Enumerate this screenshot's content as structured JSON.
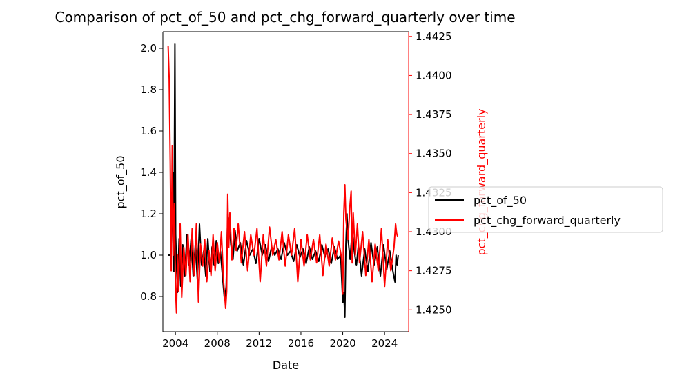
{
  "chart_data": {
    "type": "line",
    "title": "Comparison of pct_of_50 and pct_chg_forward_quarterly over time",
    "xlabel": "Date",
    "ylabel_left": "pct_of_50",
    "ylabel_right": "pct_chg_forward_quarterly",
    "x_ticks": [
      "2004",
      "2008",
      "2012",
      "2016",
      "2020",
      "2024"
    ],
    "x_tick_values": [
      2004,
      2008,
      2012,
      2016,
      2020,
      2024
    ],
    "xlim": [
      2002.8,
      2026.3
    ],
    "y_left_ticks": [
      "0.8",
      "1.0",
      "1.2",
      "1.4",
      "1.6",
      "1.8",
      "2.0"
    ],
    "y_left_tick_values": [
      0.8,
      1.0,
      1.2,
      1.4,
      1.6,
      1.8,
      2.0
    ],
    "ylim_left": [
      0.63,
      2.08
    ],
    "y_right_ticks": [
      "1.4250",
      "1.4275",
      "1.4300",
      "1.4325",
      "1.4350",
      "1.4375",
      "1.4400",
      "1.4425"
    ],
    "y_right_tick_values": [
      1.425,
      1.4275,
      1.43,
      1.4325,
      1.435,
      1.4375,
      1.44,
      1.4425
    ],
    "ylim_right": [
      1.4236,
      1.4428
    ],
    "grid": false,
    "legend_placement": "right-outside",
    "series": [
      {
        "name": "pct_of_50",
        "axis": "left",
        "color": "#000000",
        "x": [
          2003.3,
          2003.6,
          2003.8,
          2003.85,
          2003.95,
          2004.02,
          2004.1,
          2004.2,
          2004.35,
          2004.5,
          2004.7,
          2004.9,
          2005.1,
          2005.3,
          2005.5,
          2005.7,
          2005.9,
          2006.1,
          2006.3,
          2006.5,
          2006.7,
          2006.9,
          2007.1,
          2007.3,
          2007.5,
          2007.7,
          2007.9,
          2008.1,
          2008.3,
          2008.5,
          2008.7,
          2008.85,
          2009.0,
          2009.15,
          2009.3,
          2009.5,
          2009.7,
          2009.9,
          2010.2,
          2010.5,
          2010.8,
          2011.1,
          2011.4,
          2011.7,
          2012.0,
          2012.3,
          2012.6,
          2012.9,
          2013.2,
          2013.5,
          2013.8,
          2014.1,
          2014.4,
          2014.7,
          2015.0,
          2015.3,
          2015.6,
          2015.9,
          2016.2,
          2016.5,
          2016.8,
          2017.1,
          2017.4,
          2017.7,
          2018.0,
          2018.3,
          2018.6,
          2018.9,
          2019.2,
          2019.5,
          2019.8,
          2020.0,
          2020.1,
          2020.2,
          2020.3,
          2020.4,
          2020.5,
          2020.7,
          2020.9,
          2021.1,
          2021.3,
          2021.5,
          2021.8,
          2022.1,
          2022.4,
          2022.7,
          2023.0,
          2023.3,
          2023.6,
          2023.9,
          2024.2,
          2024.5,
          2024.8,
          2025.0,
          2025.1,
          2025.2,
          2025.3
        ],
        "values": [
          1.0,
          1.0,
          1.4,
          0.92,
          2.02,
          1.1,
          0.95,
          0.82,
          1.08,
          0.85,
          1.05,
          0.9,
          1.1,
          0.95,
          1.08,
          0.9,
          1.05,
          0.88,
          1.15,
          0.95,
          1.02,
          0.9,
          1.08,
          0.92,
          1.04,
          0.95,
          1.07,
          0.96,
          1.02,
          0.9,
          0.78,
          0.85,
          1.2,
          1.15,
          1.05,
          0.98,
          1.12,
          1.02,
          1.06,
          0.95,
          1.07,
          1.0,
          1.03,
          0.96,
          1.08,
          1.0,
          1.05,
          0.97,
          1.04,
          1.0,
          1.03,
          0.98,
          1.06,
          1.0,
          1.02,
          0.97,
          1.05,
          0.99,
          1.03,
          0.96,
          1.04,
          0.98,
          1.02,
          0.97,
          1.05,
          0.99,
          1.03,
          0.96,
          1.04,
          0.98,
          1.0,
          0.77,
          0.82,
          0.7,
          1.05,
          1.2,
          1.08,
          0.98,
          1.12,
          1.02,
          0.95,
          1.05,
          0.9,
          1.03,
          0.92,
          1.06,
          0.95,
          1.04,
          0.9,
          1.05,
          0.93,
          1.02,
          0.92,
          0.87,
          1.0,
          0.95,
          1.0
        ]
      },
      {
        "name": "pct_chg_forward_quarterly",
        "axis": "right",
        "color": "#ff0000",
        "x": [
          2003.3,
          2003.4,
          2003.5,
          2003.6,
          2003.7,
          2003.8,
          2003.9,
          2004.0,
          2004.1,
          2004.2,
          2004.3,
          2004.45,
          2004.6,
          2004.8,
          2005.0,
          2005.2,
          2005.4,
          2005.6,
          2005.8,
          2006.0,
          2006.2,
          2006.4,
          2006.6,
          2006.8,
          2007.0,
          2007.2,
          2007.4,
          2007.6,
          2007.8,
          2008.0,
          2008.2,
          2008.4,
          2008.6,
          2008.8,
          2008.9,
          2009.0,
          2009.1,
          2009.2,
          2009.4,
          2009.6,
          2009.8,
          2010.0,
          2010.3,
          2010.6,
          2010.9,
          2011.2,
          2011.5,
          2011.8,
          2012.1,
          2012.4,
          2012.7,
          2013.0,
          2013.3,
          2013.6,
          2013.9,
          2014.2,
          2014.5,
          2014.8,
          2015.1,
          2015.4,
          2015.7,
          2016.0,
          2016.3,
          2016.6,
          2016.9,
          2017.2,
          2017.5,
          2017.8,
          2018.1,
          2018.4,
          2018.7,
          2019.0,
          2019.3,
          2019.6,
          2019.9,
          2020.0,
          2020.1,
          2020.2,
          2020.3,
          2020.5,
          2020.7,
          2020.8,
          2020.9,
          2021.0,
          2021.2,
          2021.4,
          2021.6,
          2021.9,
          2022.2,
          2022.5,
          2022.8,
          2023.1,
          2023.4,
          2023.7,
          2024.0,
          2024.3,
          2024.6,
          2024.9,
          2025.05,
          2025.15,
          2025.25
        ],
        "values": [
          1.4419,
          1.4398,
          1.4345,
          1.4275,
          1.4355,
          1.4285,
          1.4318,
          1.4265,
          1.4248,
          1.4285,
          1.4262,
          1.4305,
          1.4258,
          1.429,
          1.4272,
          1.4298,
          1.4268,
          1.4302,
          1.4272,
          1.4305,
          1.4255,
          1.4292,
          1.4278,
          1.4295,
          1.4268,
          1.4288,
          1.4272,
          1.4298,
          1.4275,
          1.4293,
          1.428,
          1.43,
          1.4268,
          1.4251,
          1.4262,
          1.4324,
          1.429,
          1.4312,
          1.4282,
          1.4302,
          1.4288,
          1.4305,
          1.428,
          1.43,
          1.4275,
          1.4298,
          1.4285,
          1.4302,
          1.4268,
          1.4298,
          1.4278,
          1.4303,
          1.4285,
          1.4295,
          1.4282,
          1.43,
          1.4278,
          1.4298,
          1.4285,
          1.4302,
          1.4268,
          1.4295,
          1.4278,
          1.4298,
          1.4282,
          1.4295,
          1.428,
          1.4298,
          1.4272,
          1.4292,
          1.4278,
          1.4296,
          1.4282,
          1.4294,
          1.4283,
          1.426,
          1.4312,
          1.433,
          1.4308,
          1.4295,
          1.4318,
          1.4326,
          1.428,
          1.4312,
          1.4285,
          1.4305,
          1.428,
          1.43,
          1.4272,
          1.4295,
          1.4268,
          1.4292,
          1.4275,
          1.4302,
          1.4265,
          1.4295,
          1.4275,
          1.429,
          1.4305,
          1.4299,
          1.4297
        ]
      }
    ]
  }
}
